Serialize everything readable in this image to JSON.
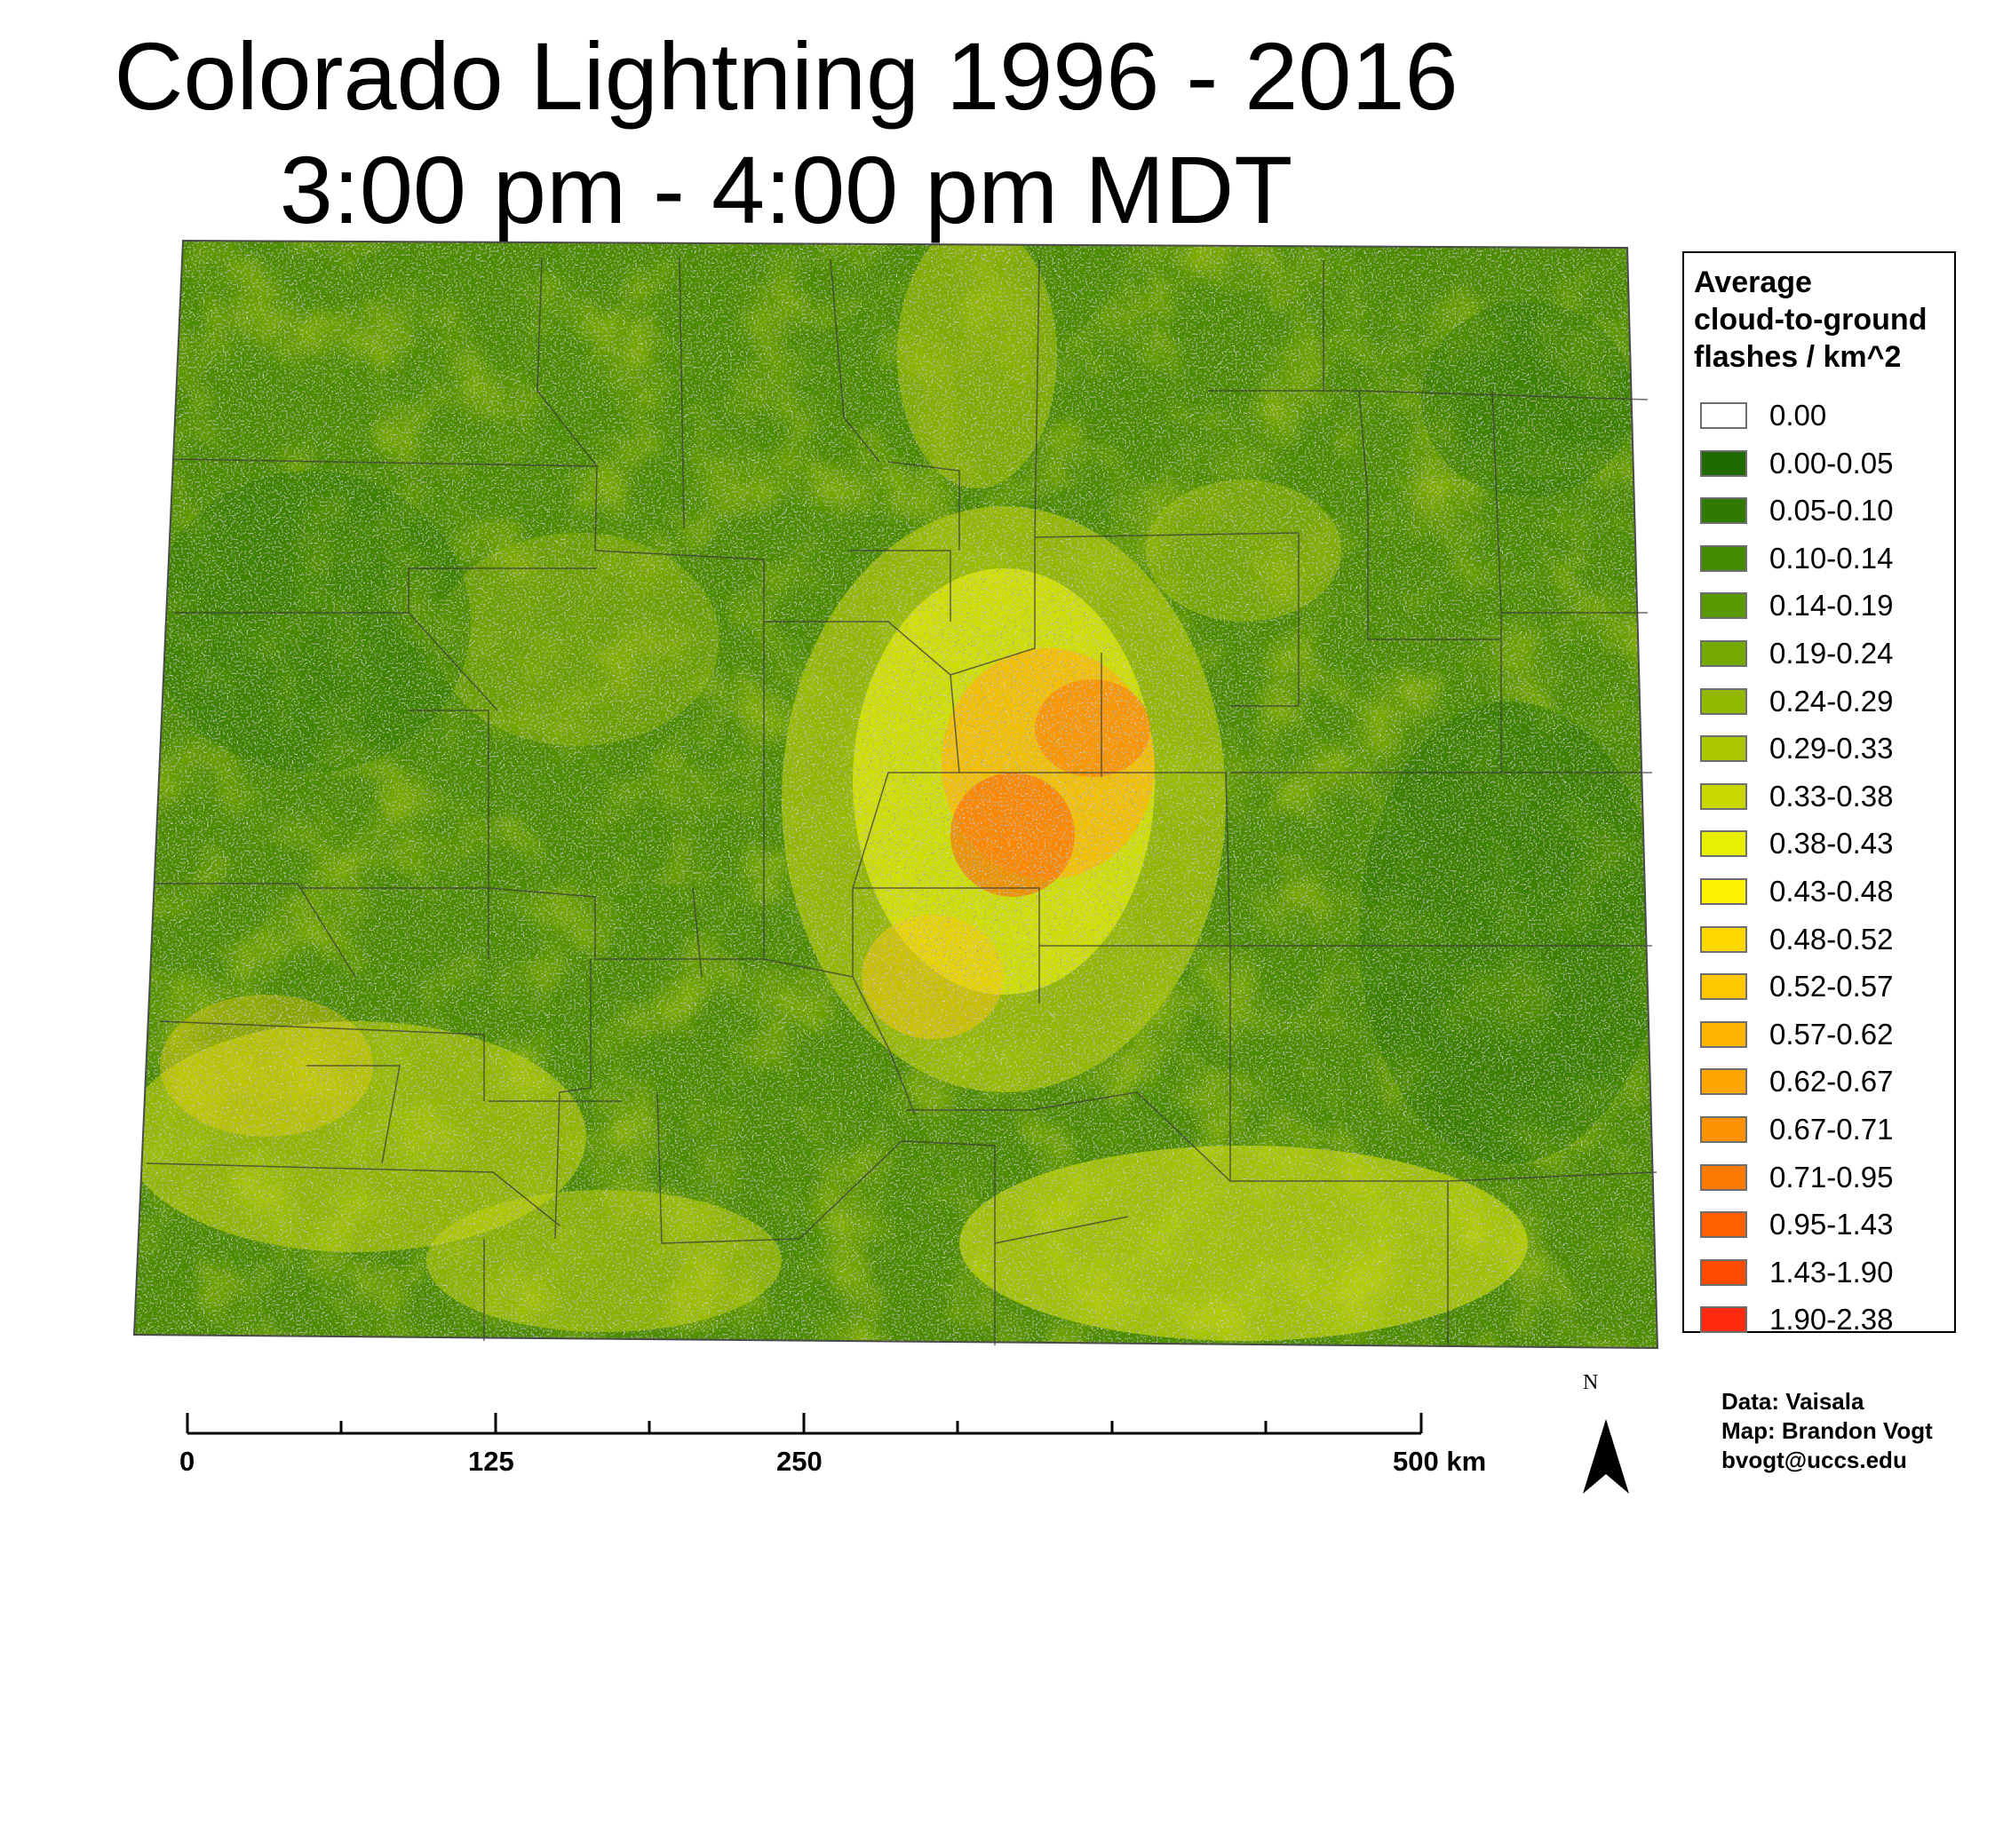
{
  "title": {
    "line1": "Colorado Lightning 1996 - 2016",
    "line2": "3:00 pm - 4:00 pm MDT"
  },
  "legend": {
    "title_lines": [
      "Average",
      "cloud-to-ground",
      "flashes / km^2"
    ],
    "classes": [
      {
        "label": "0.00",
        "color": "#ffffff"
      },
      {
        "label": "0.00-0.05",
        "color": "#1f6b00"
      },
      {
        "label": "0.05-0.10",
        "color": "#2f7a00"
      },
      {
        "label": "0.10-0.14",
        "color": "#438a00"
      },
      {
        "label": "0.14-0.19",
        "color": "#5a9a00"
      },
      {
        "label": "0.19-0.24",
        "color": "#74aa00"
      },
      {
        "label": "0.24-0.29",
        "color": "#92b900"
      },
      {
        "label": "0.29-0.33",
        "color": "#abc700"
      },
      {
        "label": "0.33-0.38",
        "color": "#c8d800"
      },
      {
        "label": "0.38-0.43",
        "color": "#e8ef00"
      },
      {
        "label": "0.43-0.48",
        "color": "#fff200"
      },
      {
        "label": "0.48-0.52",
        "color": "#ffd800"
      },
      {
        "label": "0.52-0.57",
        "color": "#ffc800"
      },
      {
        "label": "0.57-0.62",
        "color": "#ffb500"
      },
      {
        "label": "0.62-0.67",
        "color": "#ffa500"
      },
      {
        "label": "0.67-0.71",
        "color": "#ff9200"
      },
      {
        "label": "0.71-0.95",
        "color": "#ff7a00"
      },
      {
        "label": "0.95-1.43",
        "color": "#ff5f00"
      },
      {
        "label": "1.43-1.90",
        "color": "#ff4a00"
      },
      {
        "label": "1.90-2.38",
        "color": "#ff2a10"
      }
    ]
  },
  "scale_bar": {
    "labels": [
      "0",
      "125",
      "250",
      "500 km"
    ]
  },
  "north_arrow": {
    "label": "N",
    "icon": "north-arrow-icon"
  },
  "credits": {
    "data": "Data: Vaisala",
    "map": "Map: Brandon Vogt",
    "email": "bvogt@uccs.edu"
  }
}
